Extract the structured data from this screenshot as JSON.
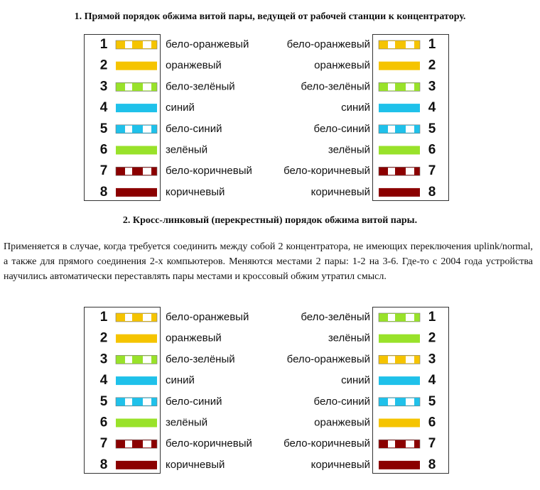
{
  "heading1": "1. Прямой порядок обжима витой пары, ведущей от рабочей станции к концентратору.",
  "diagram1": {
    "left": [
      {
        "number": 1,
        "label": "бело-оранжевый"
      },
      {
        "number": 2,
        "label": "оранжевый"
      },
      {
        "number": 3,
        "label": "бело-зелёный"
      },
      {
        "number": 4,
        "label": "синий"
      },
      {
        "number": 5,
        "label": "бело-синий"
      },
      {
        "number": 6,
        "label": "зелёный"
      },
      {
        "number": 7,
        "label": "бело-коричневый"
      },
      {
        "number": 8,
        "label": "коричневый"
      }
    ],
    "right": [
      {
        "number": 1,
        "label": "бело-оранжевый"
      },
      {
        "number": 2,
        "label": "оранжевый"
      },
      {
        "number": 3,
        "label": "бело-зелёный"
      },
      {
        "number": 4,
        "label": "синий"
      },
      {
        "number": 5,
        "label": "бело-синий"
      },
      {
        "number": 6,
        "label": "зелёный"
      },
      {
        "number": 7,
        "label": "бело-коричневый"
      },
      {
        "number": 8,
        "label": "коричневый"
      }
    ]
  },
  "heading2": "2. Кросс-линковый (перекрестный) порядок обжима витой пары.",
  "paragraph": "Применяется в случае, когда требуется соединить между собой 2 концентратора, не имеющих переключения uplink/normal, а также для прямого соединения 2-х компьютеров. Меняются местами 2 пары: 1-2 на 3-6. Где-то с 2004 года устройства научились автоматически переставлять пары местами и кроссовый обжим утратил смысл.",
  "diagram2": {
    "left": [
      {
        "number": 1,
        "label": "бело-оранжевый"
      },
      {
        "number": 2,
        "label": "оранжевый"
      },
      {
        "number": 3,
        "label": "бело-зелёный"
      },
      {
        "number": 4,
        "label": "синий"
      },
      {
        "number": 5,
        "label": "бело-синий"
      },
      {
        "number": 6,
        "label": "зелёный"
      },
      {
        "number": 7,
        "label": "бело-коричневый"
      },
      {
        "number": 8,
        "label": "коричневый"
      }
    ],
    "right": [
      {
        "number": 1,
        "label": "бело-зелёный"
      },
      {
        "number": 2,
        "label": "зелёный"
      },
      {
        "number": 3,
        "label": "бело-оранжевый"
      },
      {
        "number": 4,
        "label": "синий"
      },
      {
        "number": 5,
        "label": "бело-синий"
      },
      {
        "number": 6,
        "label": "оранжевый"
      },
      {
        "number": 7,
        "label": "бело-коричневый"
      },
      {
        "number": 8,
        "label": "коричневый"
      }
    ]
  }
}
